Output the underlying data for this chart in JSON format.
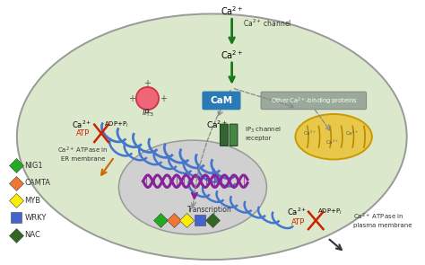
{
  "bg_color": "#ffffff",
  "cell_color": "#dce8cc",
  "cell_border_color": "#888888",
  "nucleus_color": "#d4d4d4",
  "er_color": "#4477cc",
  "mitochondria_color": "#e8c84a",
  "cam_box_color": "#2a7ab5",
  "other_proteins_box_color": "#8aaa8a",
  "legend_items": [
    {
      "label": "NIG1",
      "color": "#22aa22",
      "shape": "D"
    },
    {
      "label": "CAMTA",
      "color": "#ee7733",
      "shape": "D"
    },
    {
      "label": "MYB",
      "color": "#ffee00",
      "shape": "D"
    },
    {
      "label": "WRKY",
      "color": "#4466cc",
      "shape": "s"
    },
    {
      "label": "NAC",
      "color": "#336622",
      "shape": "D"
    }
  ],
  "tf_colors": [
    "#22aa22",
    "#ee7733",
    "#ffee00",
    "#4466cc",
    "#336622"
  ],
  "tf_shapes": [
    "D",
    "D",
    "D",
    "s",
    "D"
  ],
  "arrow_green": "#1a7a1a",
  "arrow_gray": "#888888",
  "arrow_red": "#cc2200",
  "arrow_purple": "#882288",
  "arrow_orange": "#cc6600"
}
